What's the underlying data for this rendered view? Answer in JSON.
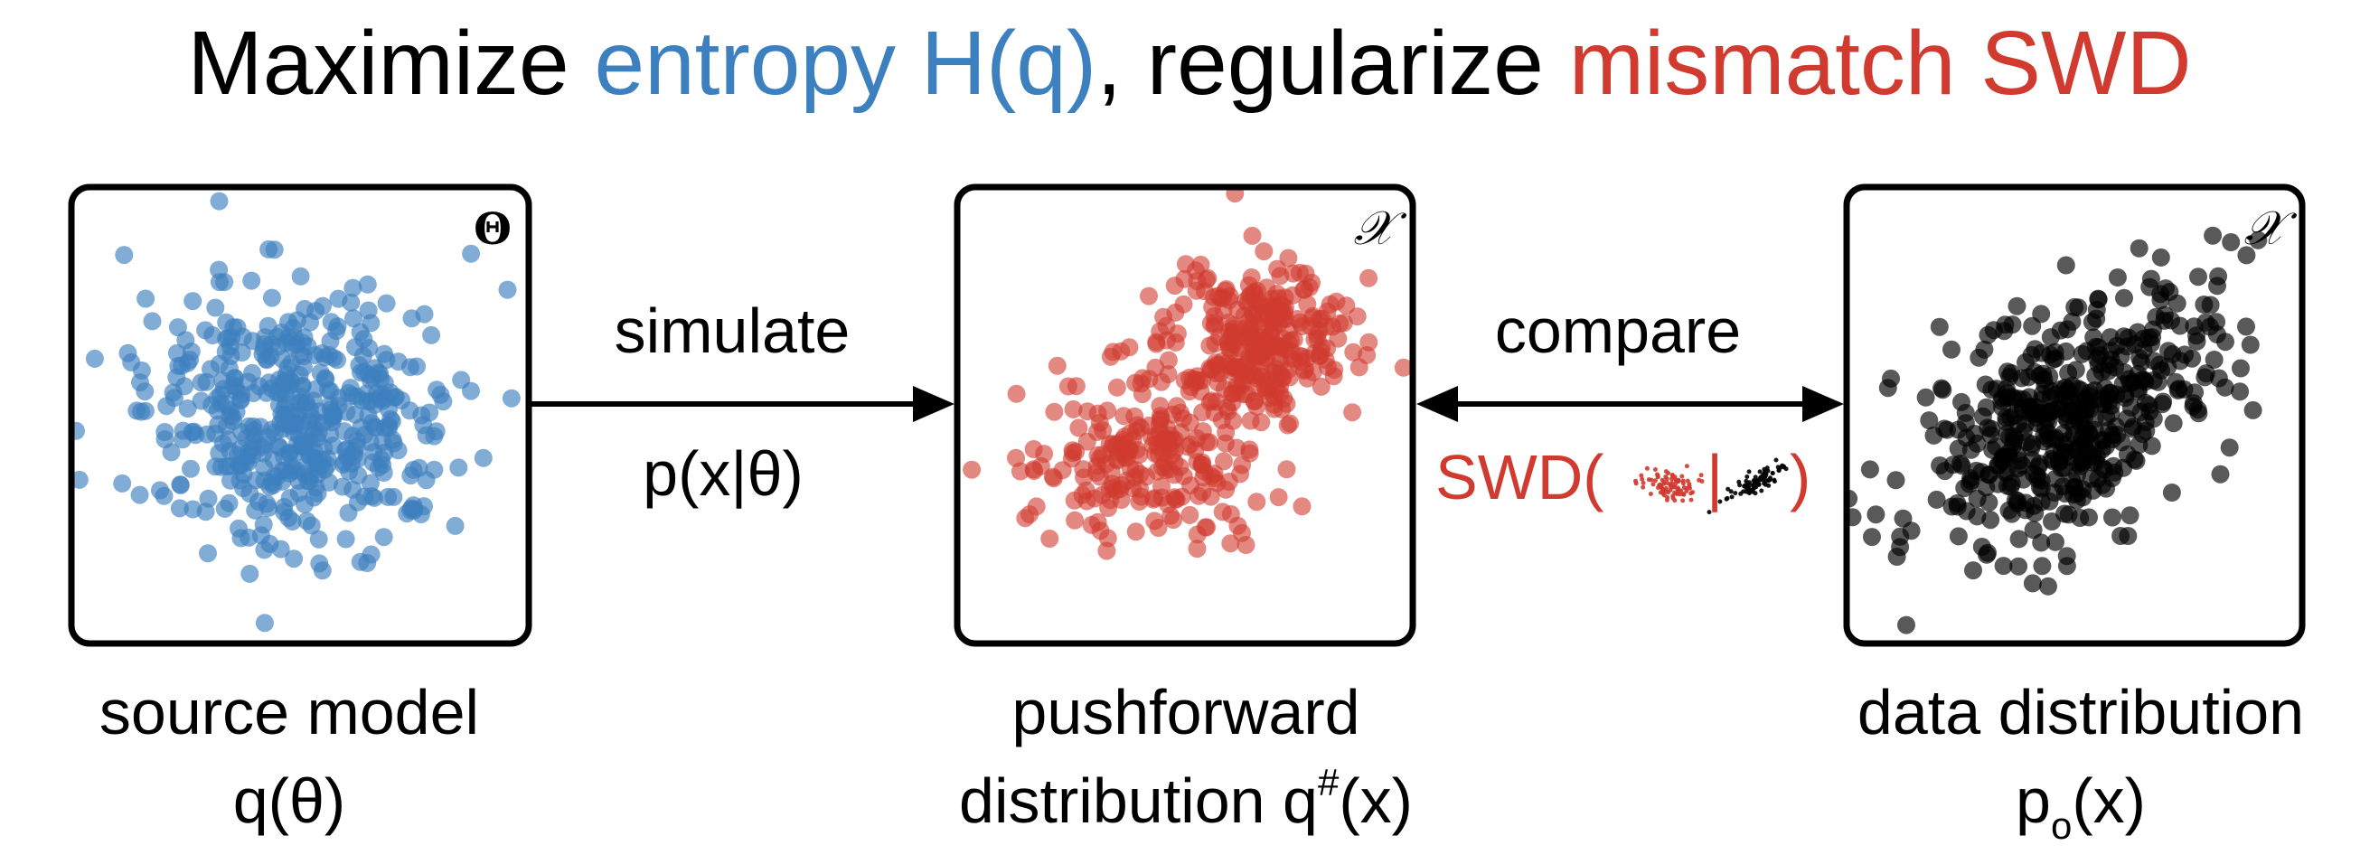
{
  "title": {
    "parts": [
      {
        "text": "Maximize ",
        "color": "#000000"
      },
      {
        "text": "entropy H(q)",
        "color": "#3d80bf"
      },
      {
        "text": ", regularize ",
        "color": "#000000"
      },
      {
        "text": "mismatch SWD",
        "color": "#d13a2f"
      }
    ]
  },
  "colors": {
    "blue": "#3d80bf",
    "red": "#d13a2f",
    "black": "#000000"
  },
  "panels": {
    "source": {
      "corner_symbol": "Θ",
      "caption_line1": "source model",
      "caption_line2": "q(θ)"
    },
    "pushforward": {
      "corner_symbol": "𝒳",
      "caption_line1": "pushforward",
      "caption_line2_main": "distribution q",
      "caption_line2_sup": "#",
      "caption_line2_end": "(x)"
    },
    "data": {
      "corner_symbol": "𝒳",
      "caption_line1": "data distribution",
      "caption_line2_main": "p",
      "caption_line2_sub": "o",
      "caption_line2_end": "(x)"
    }
  },
  "arrows": {
    "simulate": {
      "label_top": "simulate",
      "label_bottom": "p(x|θ)"
    },
    "compare": {
      "label_top": "compare",
      "swd_prefix": "SWD(",
      "swd_sep": "|",
      "swd_suffix": ")"
    }
  }
}
